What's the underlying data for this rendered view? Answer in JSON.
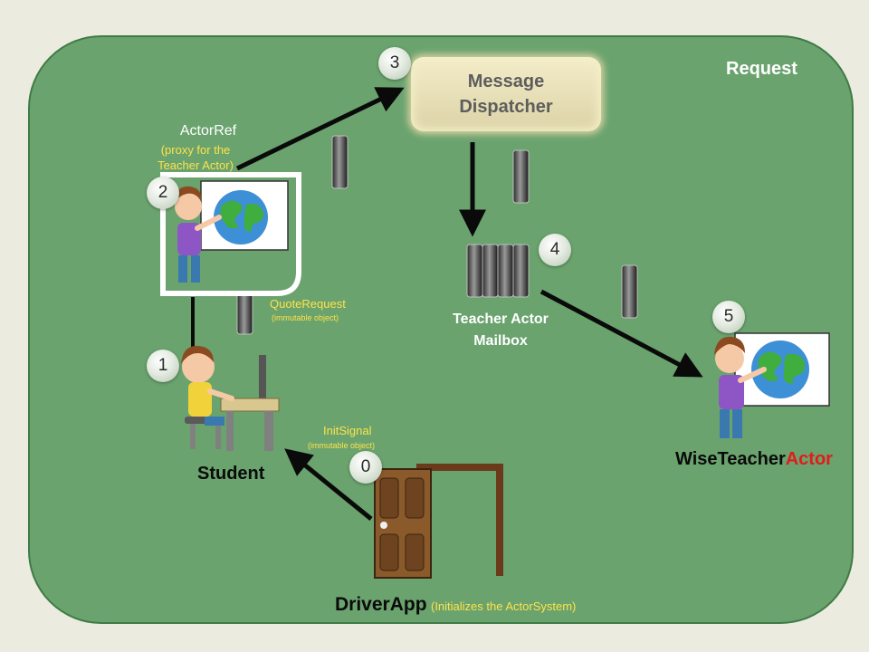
{
  "title": "Request",
  "dispatcher": {
    "line1": "Message",
    "line2": "Dispatcher"
  },
  "actorref": {
    "label": "ActorRef",
    "note_line1": "(proxy for the",
    "note_line2": "Teacher Actor)"
  },
  "quote_request": {
    "label": "QuoteRequest",
    "note": "(immutable object)"
  },
  "init_signal": {
    "label": "InitSignal",
    "note": "(immutable object)"
  },
  "mailbox": {
    "line1": "Teacher Actor",
    "line2": "Mailbox"
  },
  "student": {
    "label": "Student"
  },
  "wise_teacher": {
    "part1": "WiseTeacher",
    "part2": "Actor"
  },
  "driver_app": {
    "label": "DriverApp",
    "note": "(Initializes the ActorSystem)"
  },
  "steps": [
    "0",
    "1",
    "2",
    "3",
    "4",
    "5"
  ],
  "colors": {
    "panel": "#6aa36e",
    "panel_border": "#3f7b46",
    "background": "#ebebe0",
    "accent_red": "#e21b1b",
    "accent_yellow": "#ffe24a"
  },
  "icons": [
    "teacher-globe-icon",
    "student-computer-icon",
    "door-icon",
    "message-token-icon",
    "mailbox-icon"
  ]
}
